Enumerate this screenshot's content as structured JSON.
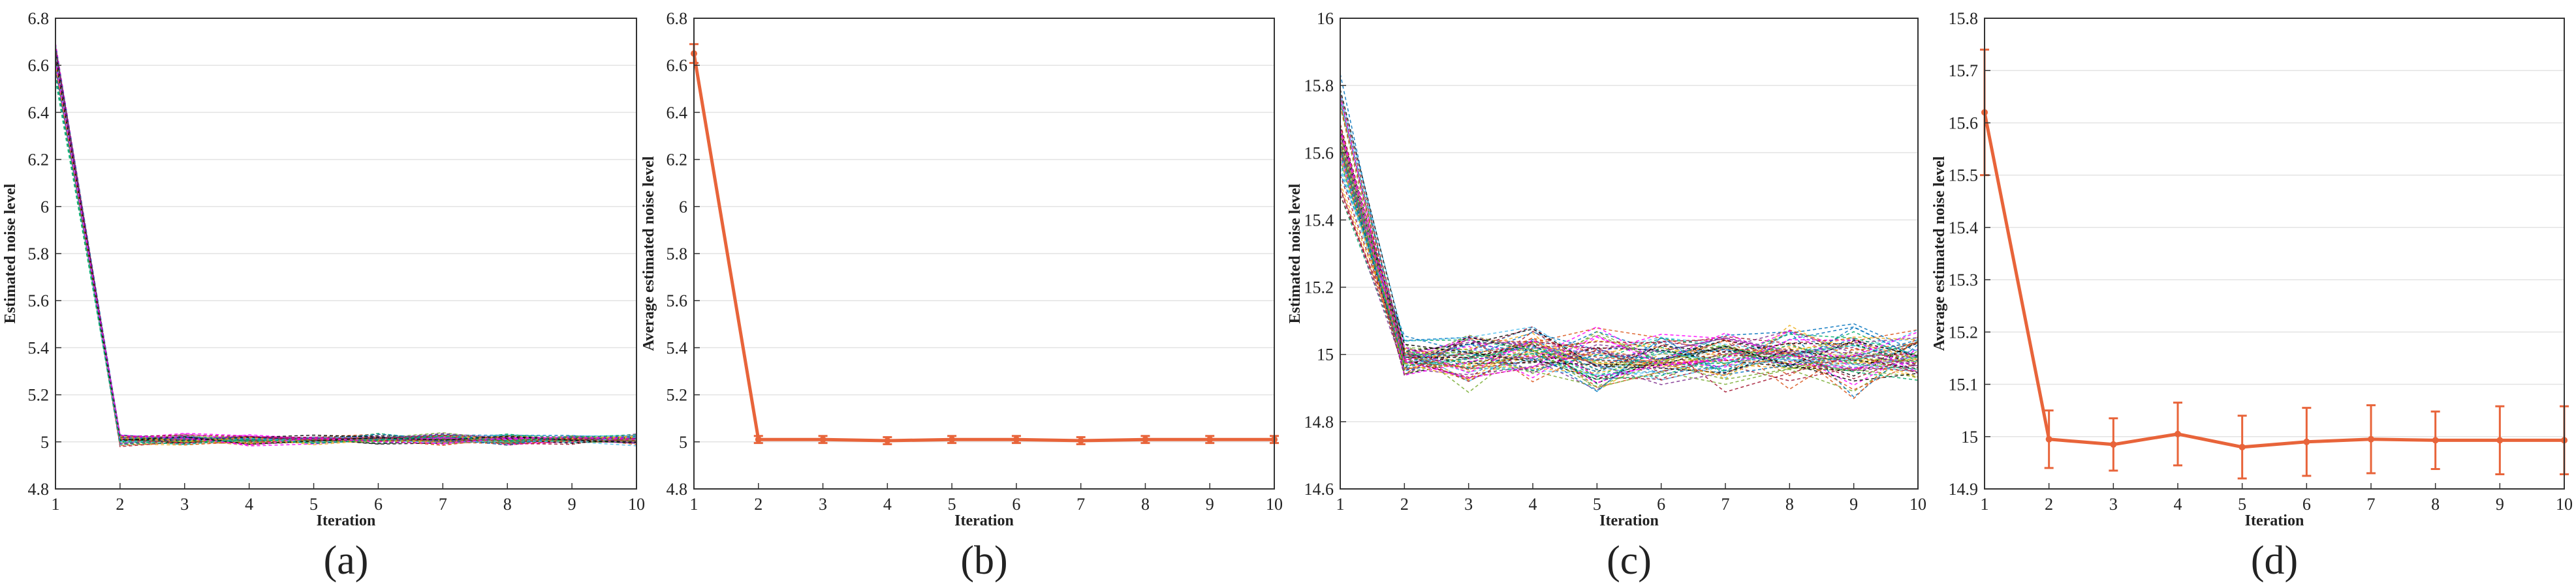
{
  "chart_data": [
    {
      "type": "line",
      "caption": "(a)",
      "xlabel": "Iteration",
      "ylabel": "Estimated noise level",
      "xlim": [
        1,
        10
      ],
      "ylim": [
        4.8,
        6.8
      ],
      "xticks": [
        1,
        2,
        3,
        4,
        5,
        6,
        7,
        8,
        9,
        10
      ],
      "yticks": [
        4.8,
        5,
        5.2,
        5.4,
        5.6,
        5.8,
        6,
        6.2,
        6.4,
        6.6,
        6.8
      ],
      "ytick_labels": [
        "4.8",
        "5",
        "5.2",
        "5.4",
        "5.6",
        "5.8",
        "6",
        "6.2",
        "6.4",
        "6.6",
        "6.8"
      ],
      "grid": "horizontal",
      "multi_run": {
        "runs": 60,
        "x": [
          1,
          2,
          3,
          4,
          5,
          6,
          7,
          8,
          9,
          10
        ],
        "mean": [
          6.62,
          5.01,
          5.01,
          5.01,
          5.01,
          5.01,
          5.01,
          5.01,
          5.01,
          5.01
        ],
        "spread": [
          0.06,
          0.02,
          0.02,
          0.02,
          0.02,
          0.02,
          0.02,
          0.02,
          0.02,
          0.02
        ],
        "style": "dashed-multicolor"
      }
    },
    {
      "type": "line",
      "caption": "(b)",
      "xlabel": "Iteration",
      "ylabel": "Average estimated noise level",
      "xlim": [
        1,
        10
      ],
      "ylim": [
        4.8,
        6.8
      ],
      "xticks": [
        1,
        2,
        3,
        4,
        5,
        6,
        7,
        8,
        9,
        10
      ],
      "yticks": [
        4.8,
        5,
        5.2,
        5.4,
        5.6,
        5.8,
        6,
        6.2,
        6.4,
        6.6,
        6.8
      ],
      "ytick_labels": [
        "4.8",
        "5",
        "5.2",
        "5.4",
        "5.6",
        "5.8",
        "6",
        "6.2",
        "6.4",
        "6.6",
        "6.8"
      ],
      "grid": "horizontal",
      "series": [
        {
          "name": "Average",
          "color": "#e8643a",
          "x": [
            1,
            2,
            3,
            4,
            5,
            6,
            7,
            8,
            9,
            10
          ],
          "values": [
            6.65,
            5.01,
            5.01,
            5.005,
            5.01,
            5.01,
            5.005,
            5.01,
            5.01,
            5.01
          ],
          "error": [
            0.04,
            0.015,
            0.015,
            0.015,
            0.015,
            0.015,
            0.015,
            0.015,
            0.015,
            0.015
          ]
        }
      ]
    },
    {
      "type": "line",
      "caption": "(c)",
      "xlabel": "Iteration",
      "ylabel": "Estimated noise level",
      "xlim": [
        1,
        10
      ],
      "ylim": [
        14.6,
        16
      ],
      "xticks": [
        1,
        2,
        3,
        4,
        5,
        6,
        7,
        8,
        9,
        10
      ],
      "yticks": [
        14.6,
        14.8,
        15,
        15.2,
        15.4,
        15.6,
        15.8,
        16
      ],
      "ytick_labels": [
        "14.6",
        "14.8",
        "15",
        "15.2",
        "15.4",
        "15.6",
        "15.8",
        "16"
      ],
      "grid": "horizontal",
      "multi_run": {
        "runs": 60,
        "x": [
          1,
          2,
          3,
          4,
          5,
          6,
          7,
          8,
          9,
          10
        ],
        "mean": [
          15.62,
          14.99,
          14.99,
          15.0,
          14.98,
          14.99,
          14.99,
          14.99,
          14.99,
          14.99
        ],
        "spread": [
          0.16,
          0.06,
          0.08,
          0.07,
          0.09,
          0.08,
          0.08,
          0.07,
          0.09,
          0.07
        ],
        "style": "dashed-multicolor"
      }
    },
    {
      "type": "line",
      "caption": "(d)",
      "xlabel": "Iteration",
      "ylabel": "Average estimated noise level",
      "xlim": [
        1,
        10
      ],
      "ylim": [
        14.9,
        15.8
      ],
      "xticks": [
        1,
        2,
        3,
        4,
        5,
        6,
        7,
        8,
        9,
        10
      ],
      "yticks": [
        14.9,
        15,
        15.1,
        15.2,
        15.3,
        15.4,
        15.5,
        15.6,
        15.7,
        15.8
      ],
      "ytick_labels": [
        "14.9",
        "15",
        "15.1",
        "15.2",
        "15.3",
        "15.4",
        "15.5",
        "15.6",
        "15.7",
        "15.8"
      ],
      "grid": "horizontal",
      "series": [
        {
          "name": "Average",
          "color": "#e8643a",
          "x": [
            1,
            2,
            3,
            4,
            5,
            6,
            7,
            8,
            9,
            10
          ],
          "values": [
            15.62,
            14.995,
            14.985,
            15.005,
            14.98,
            14.99,
            14.995,
            14.993,
            14.993,
            14.993
          ],
          "error": [
            0.12,
            0.055,
            0.05,
            0.06,
            0.06,
            0.065,
            0.065,
            0.055,
            0.065,
            0.065
          ]
        }
      ]
    }
  ],
  "palette": [
    "#0072bd",
    "#d95319",
    "#edb120",
    "#7e2f8e",
    "#77ac30",
    "#4dbeee",
    "#a2142f",
    "#000000",
    "#ff00ff",
    "#00aa66"
  ]
}
